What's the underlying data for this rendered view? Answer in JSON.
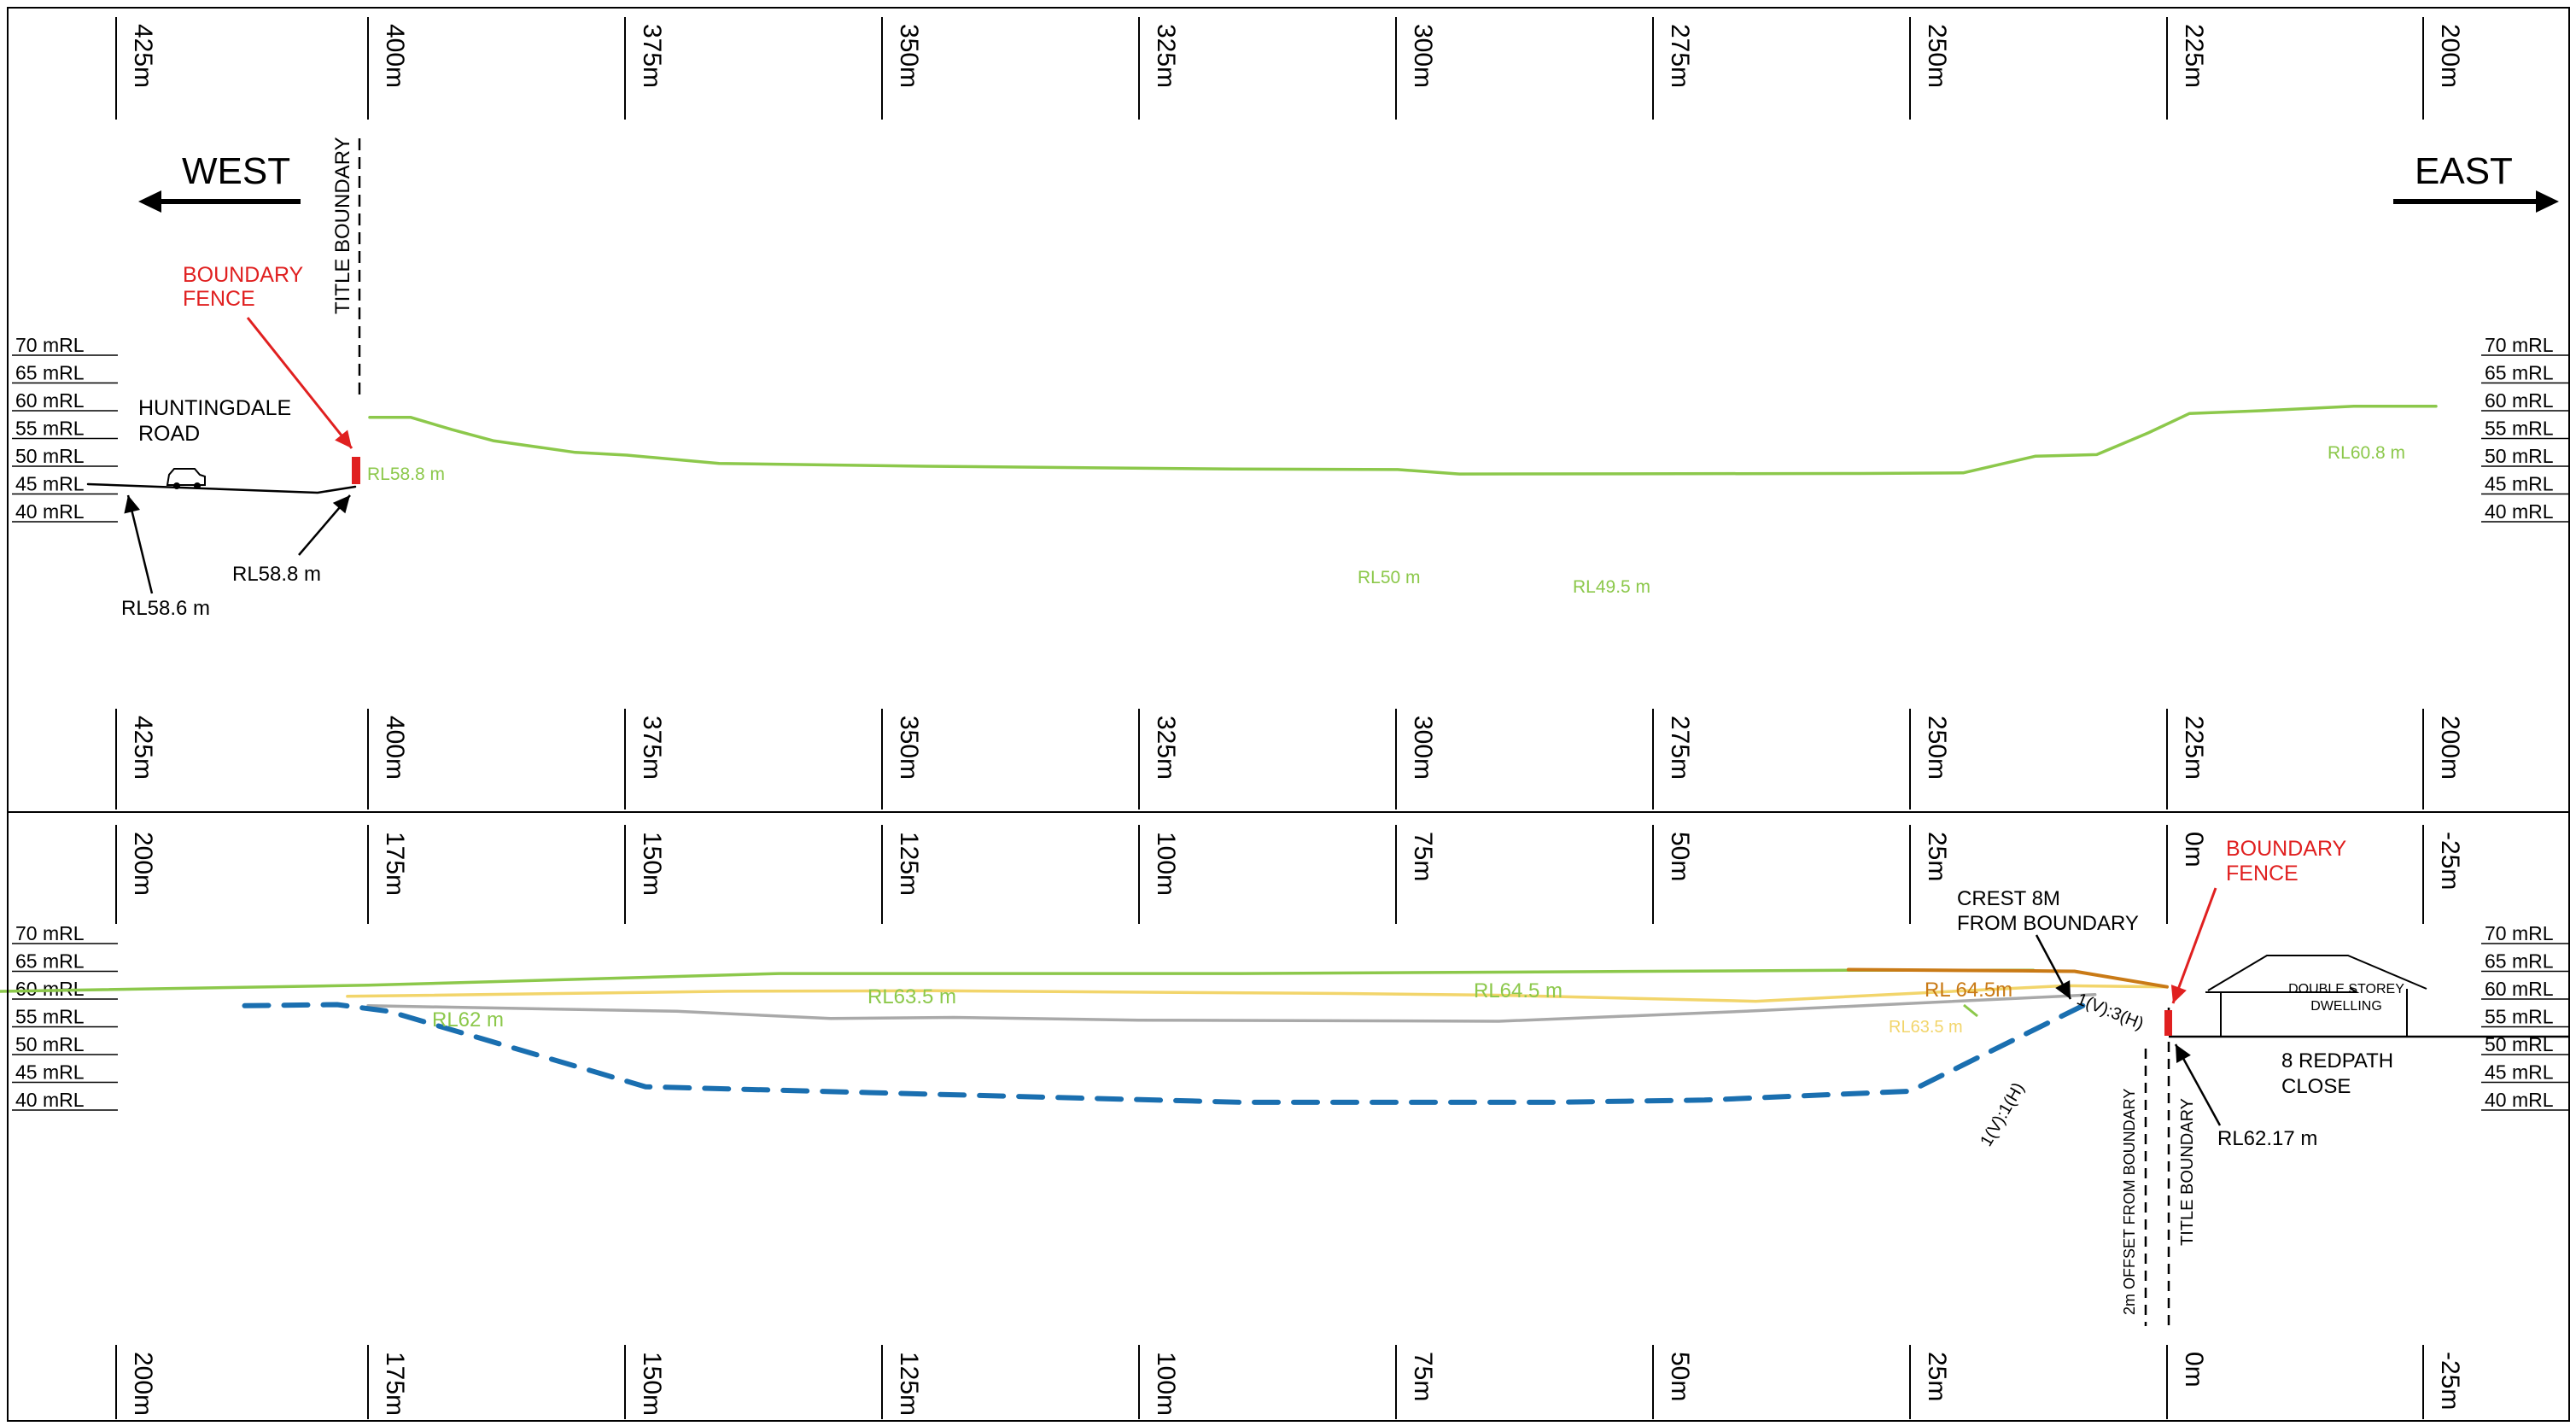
{
  "colors": {
    "ink": "#000000",
    "ground_green": "#8cc84b",
    "red": "#e02020",
    "orange": "#c97a16",
    "yellow": "#f2d56b",
    "grey": "#a9a9a9",
    "blue": "#1a6fb0"
  },
  "top_section": {
    "chainage_labels": [
      "425m",
      "400m",
      "375m",
      "350m",
      "325m",
      "300m",
      "275m",
      "250m",
      "225m",
      "200m"
    ],
    "level_labels": [
      "70 mRL",
      "65 mRL",
      "60 mRL",
      "55 mRL",
      "50 mRL",
      "45 mRL",
      "40 mRL"
    ],
    "west_label": "WEST",
    "east_label": "EAST",
    "title_boundary": "TITLE BOUNDARY",
    "boundary_fence": [
      "BOUNDARY",
      "FENCE"
    ],
    "road_name": [
      "HUNTINGDALE",
      "ROAD"
    ],
    "rl_labels": {
      "road_left": "RL58.6 m",
      "road_fence": "RL58.8 m",
      "green_fence": "RL58.8 m",
      "green_50": "RL50 m",
      "green_495": "RL49.5 m",
      "green_608": "RL60.8 m"
    },
    "profile_points": [
      [
        400,
        58.8
      ],
      [
        396,
        58.8
      ],
      [
        392,
        56.6
      ],
      [
        388,
        54.6
      ],
      [
        380,
        52.5
      ],
      [
        375,
        52
      ],
      [
        366,
        50.5
      ],
      [
        346,
        50
      ],
      [
        316,
        49.5
      ],
      [
        300,
        49.4
      ],
      [
        294,
        48.6
      ],
      [
        255,
        48.7
      ],
      [
        245,
        48.8
      ],
      [
        238,
        51.8
      ],
      [
        232,
        52.1
      ],
      [
        227,
        56
      ],
      [
        223,
        59.5
      ],
      [
        216,
        60
      ],
      [
        207,
        60.8
      ],
      [
        199,
        60.8
      ]
    ]
  },
  "bottom_section": {
    "chainage_labels": [
      "200m",
      "175m",
      "150m",
      "125m",
      "100m",
      "75m",
      "50m",
      "25m",
      "0m",
      "-25m"
    ],
    "level_labels": [
      "70 mRL",
      "65 mRL",
      "60 mRL",
      "55 mRL",
      "50 mRL",
      "45 mRL",
      "40 mRL"
    ],
    "crest_note": [
      "CREST 8M",
      "FROM BOUNDARY"
    ],
    "boundary_fence": [
      "BOUNDARY",
      "FENCE"
    ],
    "dwelling": [
      "DOUBLE STOREY",
      "DWELLING"
    ],
    "address": [
      "8 REDPATH",
      "CLOSE"
    ],
    "offset_label": "2m OFFSET FROM BOUNDARY",
    "title_boundary": "TITLE BOUNDARY",
    "slope_1_3": "1(V):3(H)",
    "slope_1_1": "1(V):1(H)",
    "rl_labels": {
      "fence": "RL62.17 m",
      "green_62": "RL62 m",
      "green_635": "RL63.5 m",
      "green_645": "RL64.5 m",
      "orange_645": "RL 64.5m",
      "yellow_635": "RL63.5 m"
    },
    "green_points": [
      [
        223,
        61
      ],
      [
        175,
        62.5
      ],
      [
        135,
        64.6
      ],
      [
        90,
        64.6
      ],
      [
        30,
        65.2
      ],
      [
        13,
        65.2
      ]
    ],
    "orange_points": [
      [
        31,
        65.3
      ],
      [
        14,
        65.1
      ],
      [
        9,
        65
      ],
      [
        0,
        62.2
      ]
    ],
    "yellow_points": [
      [
        177,
        60.5
      ],
      [
        140,
        61.4
      ],
      [
        120,
        61.5
      ],
      [
        80,
        61
      ],
      [
        65,
        60.7
      ],
      [
        40,
        59.6
      ],
      [
        10,
        62.4
      ],
      [
        0,
        62.2
      ]
    ],
    "grey_points": [
      [
        175,
        58.8
      ],
      [
        145,
        57.8
      ],
      [
        130,
        56.5
      ],
      [
        118,
        56.7
      ],
      [
        100,
        56.2
      ],
      [
        65,
        56
      ],
      [
        41,
        57.8
      ],
      [
        7,
        60.8
      ]
    ],
    "blue_points": [
      [
        187,
        58.8
      ],
      [
        178,
        59
      ],
      [
        173,
        57.8
      ],
      [
        148,
        44.2
      ],
      [
        90,
        41.4
      ],
      [
        60,
        41.4
      ],
      [
        45,
        41.8
      ],
      [
        25,
        43.4
      ],
      [
        7,
        59.9
      ]
    ]
  }
}
